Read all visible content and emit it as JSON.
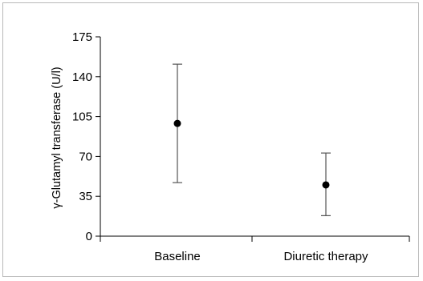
{
  "chart_data": {
    "type": "scatter",
    "title": "",
    "xlabel": "",
    "ylabel": "γ-Glutamyl transferase (U/l)",
    "categories": [
      "Baseline",
      "Diuretic therapy"
    ],
    "series": [
      {
        "values": [
          99,
          45
        ],
        "error_low": [
          47,
          18
        ],
        "error_high": [
          151,
          73
        ]
      }
    ],
    "ylim": [
      0,
      175
    ],
    "yticks": [
      "0",
      "35",
      "70",
      "105",
      "140",
      "175"
    ],
    "grid": false,
    "colors": {
      "marker": "#000000",
      "errorbar": "#555555",
      "axis": "#000000",
      "frame": "#b9b9b9"
    }
  }
}
